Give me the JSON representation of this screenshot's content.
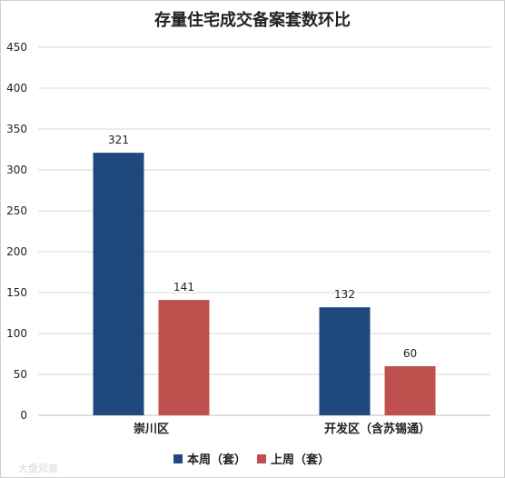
{
  "chart_data": {
    "type": "bar",
    "title": "存量住宅成交备案套数环比",
    "xlabel": "",
    "ylabel": "",
    "categories": [
      "崇川区",
      "开发区（含苏锡通）"
    ],
    "series": [
      {
        "name": "本周（套）",
        "values": [
          321,
          132
        ],
        "color": "#1f497d"
      },
      {
        "name": "上周（套）",
        "values": [
          141,
          60
        ],
        "color": "#c0504d"
      }
    ],
    "ylim": [
      0,
      450
    ],
    "yticks": [
      0,
      50,
      100,
      150,
      200,
      250,
      300,
      350,
      400,
      450
    ],
    "grid": true,
    "legend": "bottom-center",
    "data_labels": true
  },
  "watermark": "大盘观察"
}
